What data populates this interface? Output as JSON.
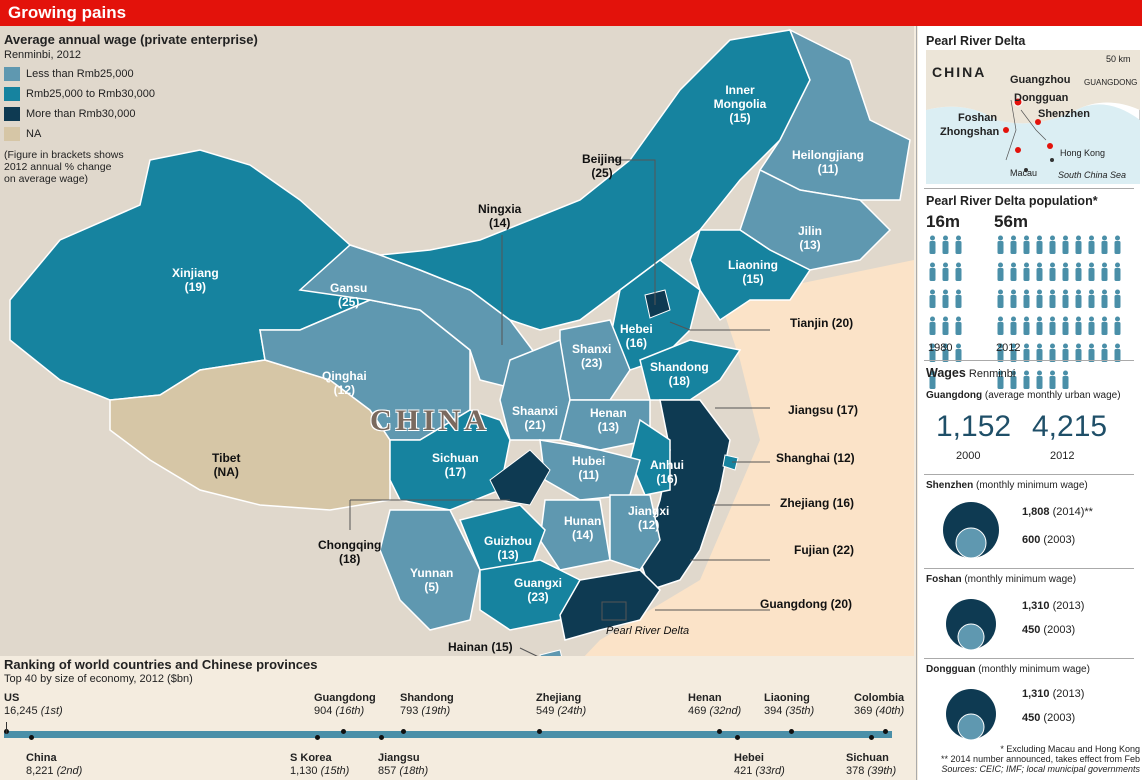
{
  "header": {
    "title": "Growing pains"
  },
  "legend": {
    "title": "Average annual wage (private enterprise)",
    "subtitle": "Renminbi, 2012",
    "items": [
      {
        "label": "Less than Rmb25,000",
        "color": "#5f98b0"
      },
      {
        "label": "Rmb25,000 to Rmb30,000",
        "color": "#16839f"
      },
      {
        "label": "More than Rmb30,000",
        "color": "#0e3a52"
      },
      {
        "label": "NA",
        "color": "#d6c6a6"
      }
    ],
    "note": [
      "(Figure in brackets shows",
      "2012 annual % change",
      "on average wage)"
    ]
  },
  "map": {
    "country_label": "CHINA",
    "provinces": [
      {
        "name": "Inner Mongolia",
        "value": "(15)"
      },
      {
        "name": "Heilongjiang",
        "value": "(11)"
      },
      {
        "name": "Jilin",
        "value": "(13)"
      },
      {
        "name": "Liaoning",
        "value": "(15)"
      },
      {
        "name": "Xinjiang",
        "value": "(19)"
      },
      {
        "name": "Gansu",
        "value": "(25)"
      },
      {
        "name": "Qinghai",
        "value": "(12)"
      },
      {
        "name": "Tibet",
        "value": "(NA)"
      },
      {
        "name": "Sichuan",
        "value": "(17)"
      },
      {
        "name": "Yunnan",
        "value": "(5)"
      },
      {
        "name": "Guizhou",
        "value": "(13)"
      },
      {
        "name": "Guangxi",
        "value": "(23)"
      },
      {
        "name": "Hunan",
        "value": "(14)"
      },
      {
        "name": "Jiangxi",
        "value": "(12)"
      },
      {
        "name": "Hubei",
        "value": "(11)"
      },
      {
        "name": "Anhui",
        "value": "(16)"
      },
      {
        "name": "Henan",
        "value": "(13)"
      },
      {
        "name": "Shaanxi",
        "value": "(21)"
      },
      {
        "name": "Shanxi",
        "value": "(23)"
      },
      {
        "name": "Hebei",
        "value": "(16)"
      },
      {
        "name": "Shandong",
        "value": "(18)"
      }
    ],
    "callouts": [
      {
        "name": "Beijing",
        "value": "(25)"
      },
      {
        "name": "Ningxia",
        "value": "(14)"
      },
      {
        "name": "Chongqing",
        "value": "(18)"
      },
      {
        "label": "Tianjin (20)"
      },
      {
        "label": "Jiangsu (17)"
      },
      {
        "label": "Shanghai (12)"
      },
      {
        "label": "Zhejiang (16)"
      },
      {
        "label": "Fujian (22)"
      },
      {
        "label": "Guangdong (20)"
      },
      {
        "label": "Hainan (15)"
      }
    ],
    "prd_label": "Pearl River Delta"
  },
  "ranking": {
    "title": "Ranking of world countries and Chinese provinces",
    "subtitle": "Top 40 by size of economy, 2012 ($bn)",
    "top": [
      {
        "name": "US",
        "value": "16,245",
        "rank": "(1st)"
      },
      {
        "name": "Guangdong",
        "value": "904",
        "rank": "(16th)"
      },
      {
        "name": "Shandong",
        "value": "793",
        "rank": "(19th)"
      },
      {
        "name": "Zhejiang",
        "value": "549",
        "rank": "(24th)"
      },
      {
        "name": "Henan",
        "value": "469",
        "rank": "(32nd)"
      },
      {
        "name": "Liaoning",
        "value": "394",
        "rank": "(35th)"
      },
      {
        "name": "Colombia",
        "value": "369",
        "rank": "(40th)"
      }
    ],
    "bottom": [
      {
        "name": "China",
        "value": "8,221",
        "rank": "(2nd)"
      },
      {
        "name": "S Korea",
        "value": "1,130",
        "rank": "(15th)"
      },
      {
        "name": "Jiangsu",
        "value": "857",
        "rank": "(18th)"
      },
      {
        "name": "Hebei",
        "value": "421",
        "rank": "(33rd)"
      },
      {
        "name": "Sichuan",
        "value": "378",
        "rank": "(39th)"
      }
    ]
  },
  "sidebar": {
    "prd_title": "Pearl River Delta",
    "inset": {
      "scale": "50 km",
      "country": "CHINA",
      "region": "GUANGDONG",
      "cities": [
        "Guangzhou",
        "Dongguan",
        "Foshan",
        "Shenzhen",
        "Zhongshan",
        "Hong Kong",
        "Macau"
      ],
      "sea": "South China Sea"
    },
    "population": {
      "title": "Pearl River Delta population*",
      "a_value": "16m",
      "a_year": "1980",
      "b_value": "56m",
      "b_year": "2012"
    },
    "wages_title": "Wages",
    "wages_unit": "Renminbi",
    "guangdong": {
      "name": "Guangdong",
      "desc": "(average monthly urban wage)",
      "v2000": "1,152",
      "y2000": "2000",
      "v2012": "4,215",
      "y2012": "2012"
    },
    "cities": [
      {
        "name": "Shenzhen",
        "desc": "(monthly minimum wage)",
        "high": "1,808",
        "high_year": "(2014)**",
        "low": "600",
        "low_year": "(2003)"
      },
      {
        "name": "Foshan",
        "desc": "(monthly minimum wage)",
        "high": "1,310",
        "high_year": "(2013)",
        "low": "450",
        "low_year": "(2003)"
      },
      {
        "name": "Dongguan",
        "desc": "(monthly minimum wage)",
        "high": "1,310",
        "high_year": "(2013)",
        "low": "450",
        "low_year": "(2003)"
      }
    ],
    "footnotes": [
      "* Excluding Macau and Hong Kong",
      "** 2014 number announced, takes effect from Feb",
      "Sources: CEIC; IMF; local municipal governments"
    ]
  }
}
